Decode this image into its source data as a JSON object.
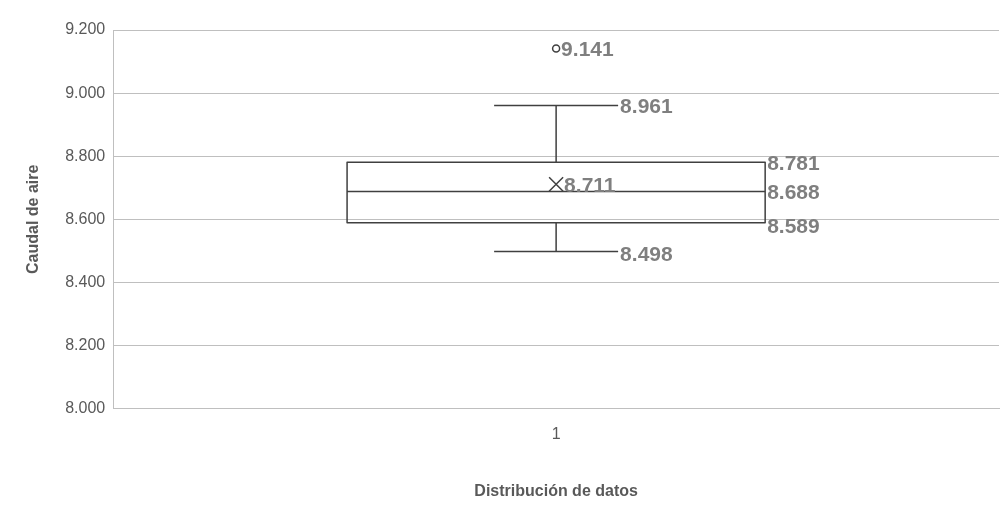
{
  "chart_data": {
    "type": "box",
    "xlabel": "Distribución de datos",
    "ylabel": "Caudal de aire",
    "categories": [
      "1"
    ],
    "boxes": [
      {
        "low": 8.498,
        "q1": 8.589,
        "median": 8.688,
        "q3": 8.781,
        "high": 8.961,
        "mean": 8.711,
        "outliers": [
          9.141
        ]
      }
    ],
    "ylim": [
      8.0,
      9.2
    ],
    "yticks": [
      {
        "value": 8.0,
        "label": "8.000"
      },
      {
        "value": 8.2,
        "label": "8.200"
      },
      {
        "value": 8.4,
        "label": "8.400"
      },
      {
        "value": 8.6,
        "label": "8.600"
      },
      {
        "value": 8.8,
        "label": "8.800"
      },
      {
        "value": 9.0,
        "label": "9.000"
      },
      {
        "value": 9.2,
        "label": "9.200"
      }
    ],
    "grid": "y",
    "annotations": [
      "9.141",
      "8.961",
      "8.781",
      "8.711",
      "8.688",
      "8.589",
      "8.498"
    ]
  }
}
